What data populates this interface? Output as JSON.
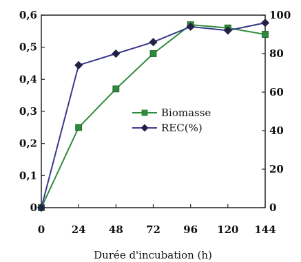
{
  "chart_data": {
    "type": "line",
    "xlabel": "Durée d'incubation (h)",
    "x": [
      0,
      24,
      48,
      72,
      96,
      120,
      144
    ],
    "x_tick_labels": [
      "0",
      "24",
      "48",
      "72",
      "96",
      "120",
      "144"
    ],
    "ylim_left": [
      0,
      0.6
    ],
    "y_left_tick_labels": [
      "0",
      "0,1",
      "0,2",
      "0,3",
      "0,4",
      "0,5",
      "0,6"
    ],
    "ylim_right": [
      0,
      100
    ],
    "y_right_tick_labels": [
      "0",
      "20",
      "40",
      "60",
      "80",
      "100"
    ],
    "grid": false,
    "legend_position": "center-right",
    "series": [
      {
        "name": "Biomasse",
        "axis": "left",
        "marker": "square",
        "color": "#2e8b3a",
        "values": [
          0,
          0.25,
          0.37,
          0.48,
          0.57,
          0.56,
          0.54
        ]
      },
      {
        "name": "REC(%)",
        "axis": "right",
        "marker": "diamond",
        "color": "#3a3a8c",
        "values": [
          0,
          74,
          80,
          86,
          94,
          92,
          96
        ]
      }
    ]
  }
}
